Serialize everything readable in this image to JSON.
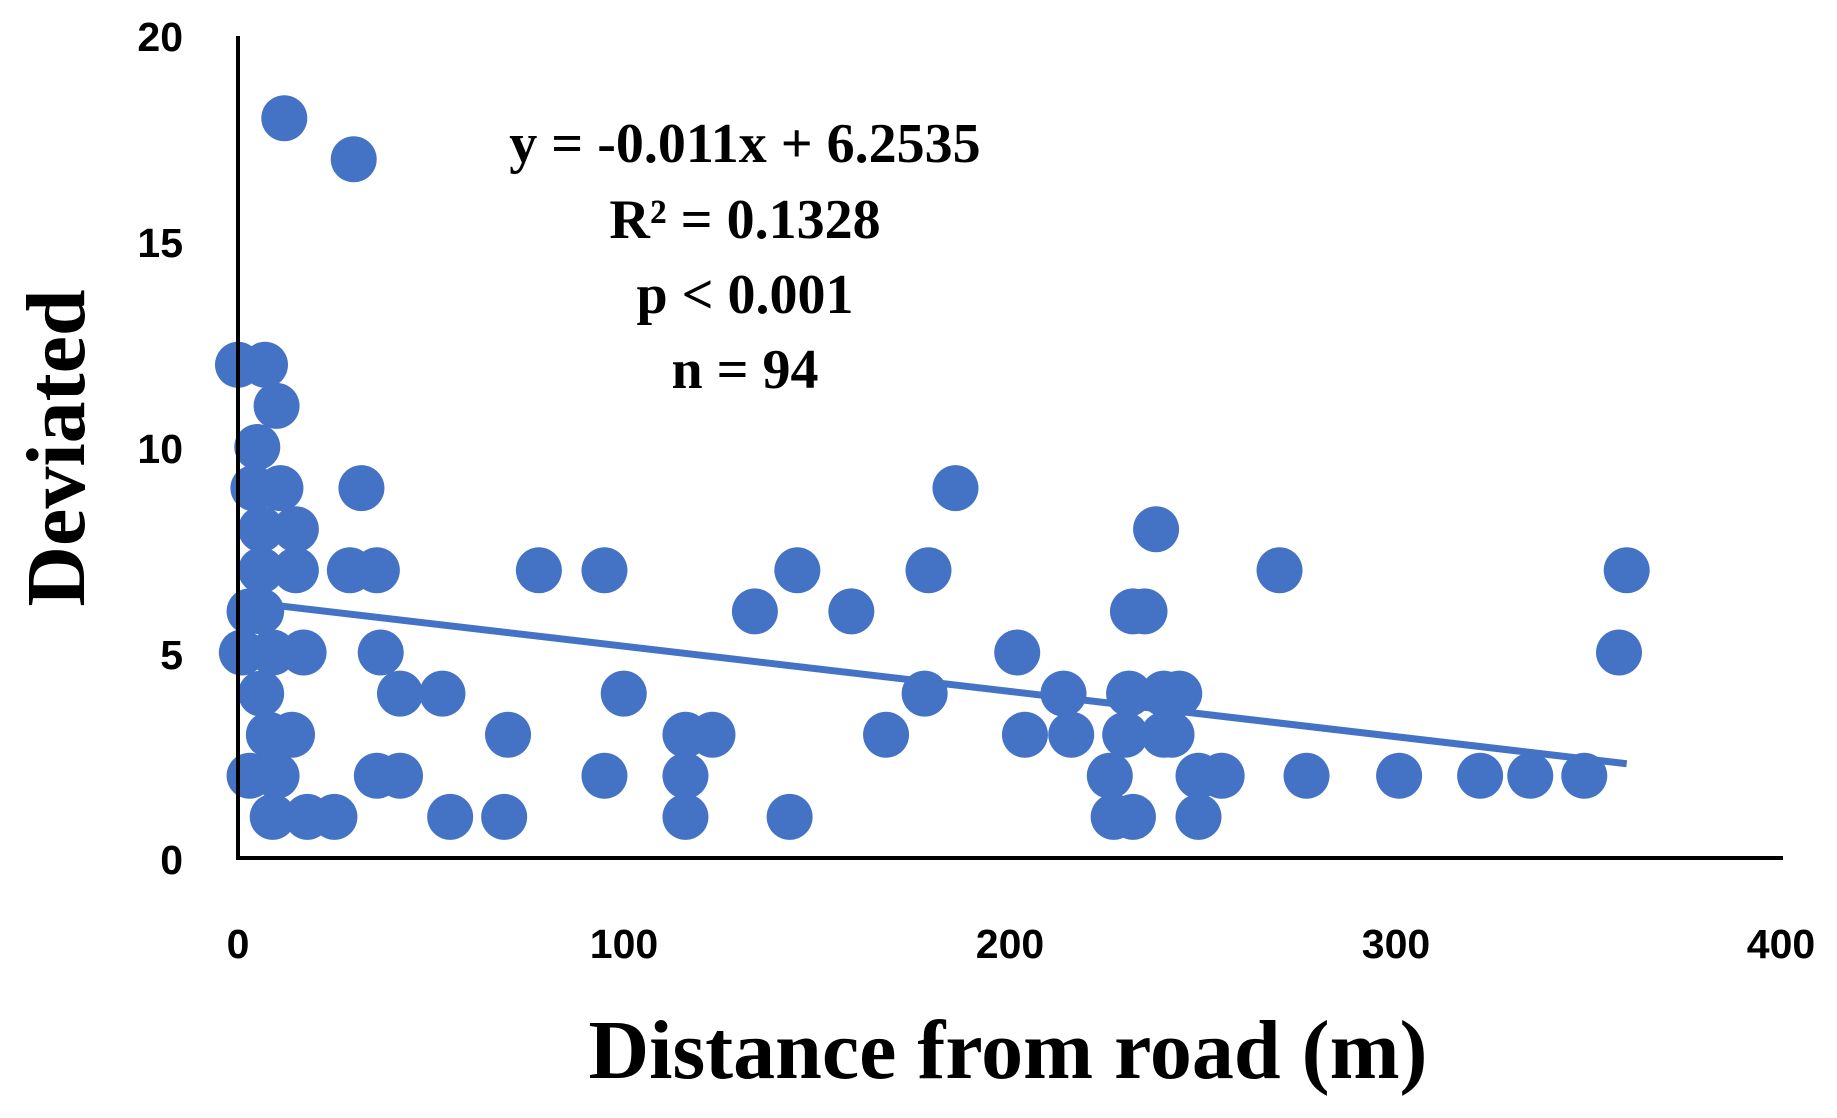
{
  "chart_data": {
    "type": "scatter",
    "title": "",
    "xlabel": "Distance from road (m)",
    "ylabel": "Deviated",
    "xlim": [
      0,
      400
    ],
    "ylim": [
      0,
      20
    ],
    "x_ticks": [
      "0",
      "100",
      "200",
      "300",
      "400"
    ],
    "y_ticks": [
      "0",
      "5",
      "10",
      "15",
      "20"
    ],
    "grid": false,
    "legend": "none",
    "point_color": "#4472c4",
    "trendline": {
      "slope": -0.011,
      "intercept": 6.2535,
      "x_range": [
        0,
        360
      ],
      "color": "#4472c4"
    },
    "annotations": [
      "y = -0.011x + 6.2535",
      "R² = 0.1328",
      "p < 0.001",
      "n = 94"
    ],
    "points": [
      {
        "x": 12,
        "y": 18
      },
      {
        "x": 30,
        "y": 17
      },
      {
        "x": 0,
        "y": 12
      },
      {
        "x": 7,
        "y": 12
      },
      {
        "x": 10,
        "y": 11
      },
      {
        "x": 5,
        "y": 10
      },
      {
        "x": 4,
        "y": 9
      },
      {
        "x": 11,
        "y": 9
      },
      {
        "x": 32,
        "y": 9
      },
      {
        "x": 6,
        "y": 8
      },
      {
        "x": 15,
        "y": 8
      },
      {
        "x": 6,
        "y": 7
      },
      {
        "x": 15,
        "y": 7
      },
      {
        "x": 29,
        "y": 7
      },
      {
        "x": 36,
        "y": 7
      },
      {
        "x": 3,
        "y": 6
      },
      {
        "x": 6,
        "y": 6
      },
      {
        "x": 1,
        "y": 5
      },
      {
        "x": 9,
        "y": 5
      },
      {
        "x": 17,
        "y": 5
      },
      {
        "x": 37,
        "y": 5
      },
      {
        "x": 6,
        "y": 4
      },
      {
        "x": 42,
        "y": 4
      },
      {
        "x": 53,
        "y": 4
      },
      {
        "x": 8,
        "y": 3
      },
      {
        "x": 14,
        "y": 3
      },
      {
        "x": 70,
        "y": 3
      },
      {
        "x": 3,
        "y": 2
      },
      {
        "x": 10,
        "y": 2
      },
      {
        "x": 36,
        "y": 2
      },
      {
        "x": 42,
        "y": 2
      },
      {
        "x": 9,
        "y": 1
      },
      {
        "x": 18,
        "y": 1
      },
      {
        "x": 25,
        "y": 1
      },
      {
        "x": 55,
        "y": 1
      },
      {
        "x": 69,
        "y": 1
      },
      {
        "x": 78,
        "y": 7
      },
      {
        "x": 95,
        "y": 7
      },
      {
        "x": 100,
        "y": 4
      },
      {
        "x": 95,
        "y": 2
      },
      {
        "x": 116,
        "y": 3
      },
      {
        "x": 123,
        "y": 3
      },
      {
        "x": 116,
        "y": 2
      },
      {
        "x": 116,
        "y": 1
      },
      {
        "x": 134,
        "y": 6
      },
      {
        "x": 145,
        "y": 7
      },
      {
        "x": 143,
        "y": 1
      },
      {
        "x": 159,
        "y": 6
      },
      {
        "x": 168,
        "y": 3
      },
      {
        "x": 179,
        "y": 7
      },
      {
        "x": 178,
        "y": 4
      },
      {
        "x": 186,
        "y": 9
      },
      {
        "x": 202,
        "y": 5
      },
      {
        "x": 204,
        "y": 3
      },
      {
        "x": 214,
        "y": 4
      },
      {
        "x": 216,
        "y": 3
      },
      {
        "x": 226,
        "y": 2
      },
      {
        "x": 227,
        "y": 1
      },
      {
        "x": 232,
        "y": 1
      },
      {
        "x": 231,
        "y": 4
      },
      {
        "x": 230,
        "y": 3
      },
      {
        "x": 232,
        "y": 6
      },
      {
        "x": 235,
        "y": 6
      },
      {
        "x": 238,
        "y": 8
      },
      {
        "x": 240,
        "y": 4
      },
      {
        "x": 244,
        "y": 4
      },
      {
        "x": 240,
        "y": 3
      },
      {
        "x": 242,
        "y": 3
      },
      {
        "x": 249,
        "y": 2
      },
      {
        "x": 255,
        "y": 2
      },
      {
        "x": 249,
        "y": 1
      },
      {
        "x": 270,
        "y": 7
      },
      {
        "x": 277,
        "y": 2
      },
      {
        "x": 301,
        "y": 2
      },
      {
        "x": 322,
        "y": 2
      },
      {
        "x": 335,
        "y": 2
      },
      {
        "x": 349,
        "y": 2
      },
      {
        "x": 358,
        "y": 5
      },
      {
        "x": 360,
        "y": 7
      }
    ]
  }
}
